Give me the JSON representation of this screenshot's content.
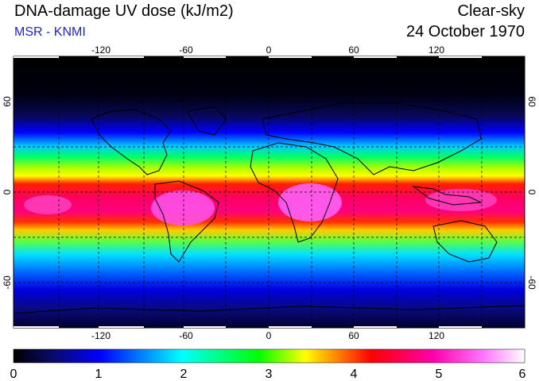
{
  "header": {
    "title": "DNA-damage UV dose (kJ/m2)",
    "subtitle": "MSR - KNMI",
    "condition": "Clear-sky",
    "date": "24 October 1970"
  },
  "colors": {
    "subtitle": "#1f1fd6",
    "band_top": "#000000",
    "colormap": [
      "#000000",
      "#0a0a6e",
      "#0000ff",
      "#00ffff",
      "#00ff00",
      "#ffff00",
      "#ff0000",
      "#ff00aa",
      "#ff66ff",
      "#ffffff"
    ]
  },
  "map": {
    "lon_range": [
      -180,
      180
    ],
    "lat_range": [
      -90,
      90
    ],
    "lon_ticks": [
      "-120",
      "-60",
      "0",
      "60",
      "120"
    ],
    "lat_ticks_left": [
      "60",
      "0",
      "-60"
    ],
    "lat_ticks_right": [
      "60",
      "0",
      "-60"
    ],
    "projection": "equirectangular",
    "graticule": "dashed 30 deg"
  },
  "colorbar": {
    "min": 0,
    "max": 6,
    "labels": [
      "0",
      "1",
      "2",
      "3",
      "4",
      "5",
      "6"
    ]
  }
}
